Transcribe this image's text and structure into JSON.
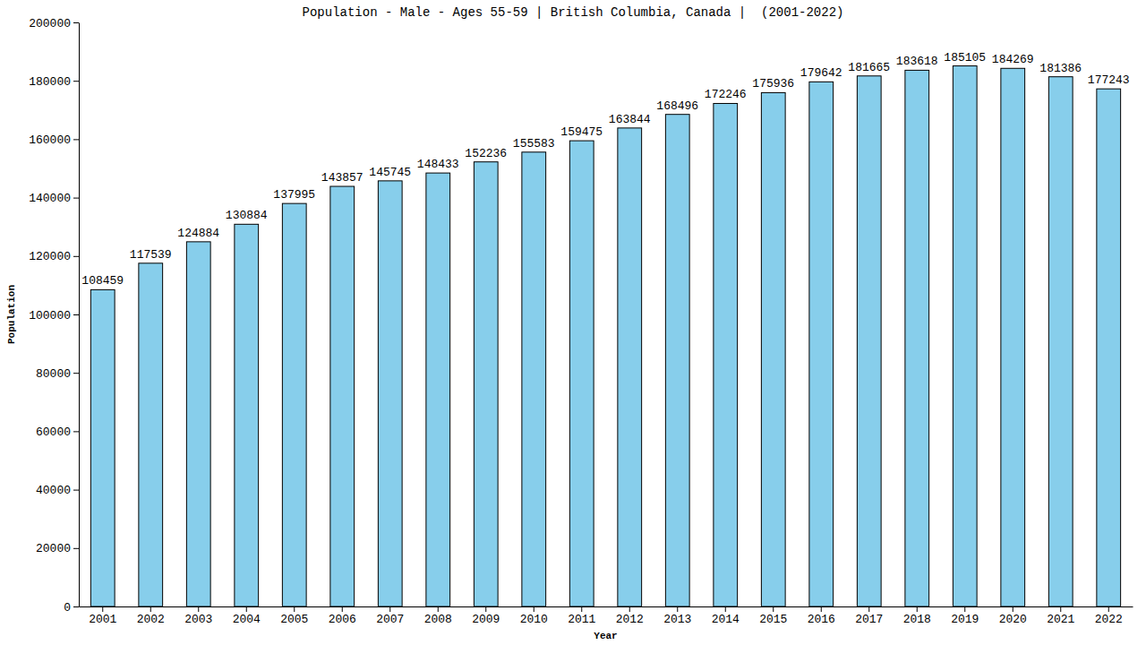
{
  "chart_data": {
    "type": "bar",
    "title": "Population - Male - Ages 55-59 | British Columbia, Canada |  (2001-2022)",
    "x_label": "Year",
    "y_label": "Population",
    "categories": [
      "2001",
      "2002",
      "2003",
      "2004",
      "2005",
      "2006",
      "2007",
      "2008",
      "2009",
      "2010",
      "2011",
      "2012",
      "2013",
      "2014",
      "2015",
      "2016",
      "2017",
      "2018",
      "2019",
      "2020",
      "2021",
      "2022"
    ],
    "values": [
      108459,
      117539,
      124884,
      130884,
      137995,
      143857,
      145745,
      148433,
      152236,
      155583,
      159475,
      163844,
      168496,
      172246,
      175936,
      179642,
      181665,
      183618,
      185105,
      184269,
      181386,
      177243
    ],
    "color": "#87ceeb",
    "ylim": [
      0,
      200000
    ],
    "yticks": [
      0,
      20000,
      40000,
      60000,
      80000,
      100000,
      120000,
      140000,
      160000,
      180000,
      200000
    ],
    "grid": false,
    "data_labels": true
  }
}
